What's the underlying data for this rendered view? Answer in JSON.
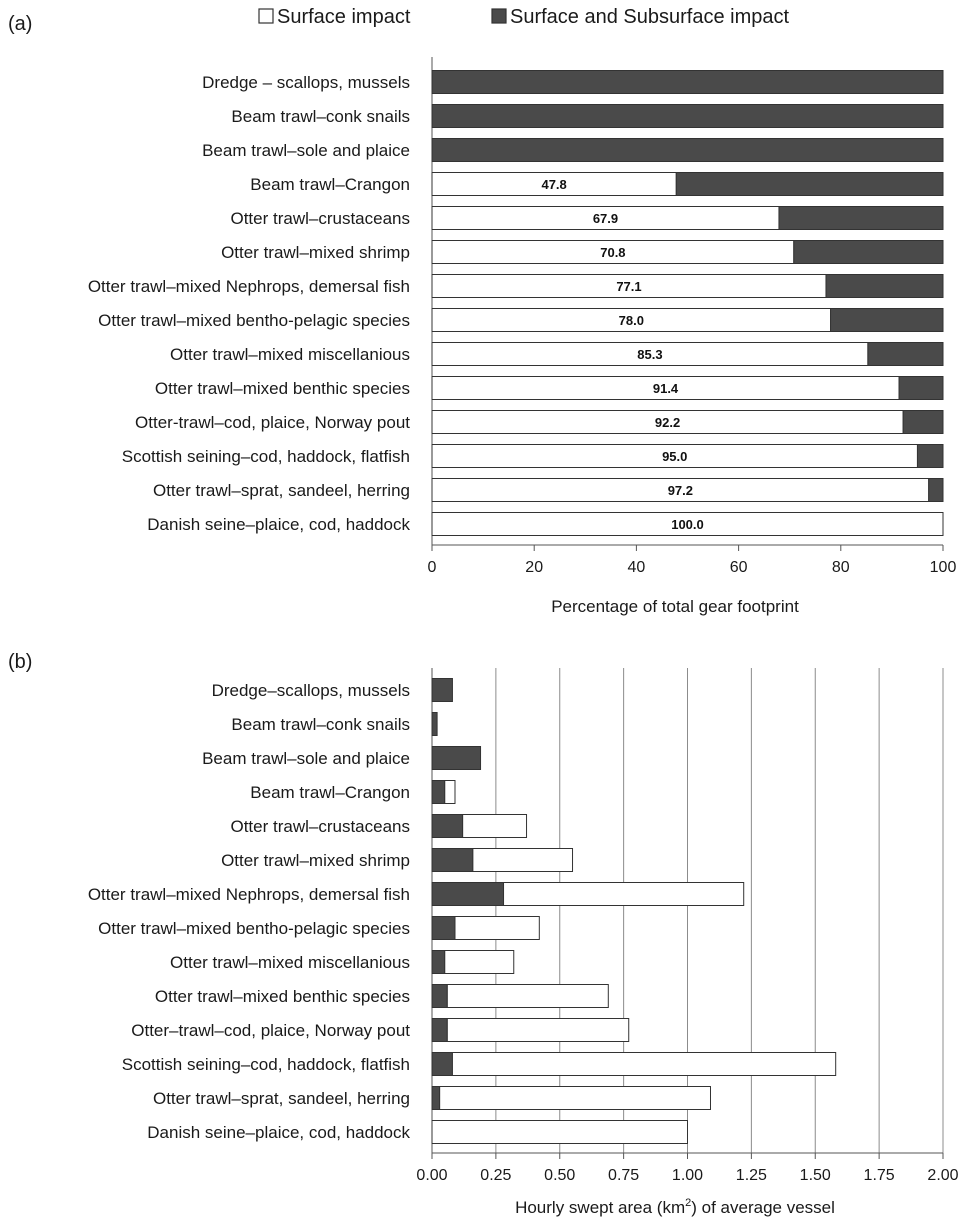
{
  "legend": {
    "surface": "Surface impact",
    "subsurface": "Surface and Subsurface impact"
  },
  "colors": {
    "surface": "#ffffff",
    "subsurface": "#4a4a4a",
    "outline": "#333333",
    "grid": "#8c8c8c"
  },
  "chart_data": [
    {
      "panel": "(a)",
      "type": "bar",
      "orientation": "horizontal",
      "stacked": true,
      "xlabel": "Percentage of total  gear footprint",
      "xlim": [
        0,
        100
      ],
      "xticks": [
        "0",
        "20",
        "40",
        "60",
        "80",
        "100"
      ],
      "xtick_values": [
        0,
        20,
        40,
        60,
        80,
        100
      ],
      "grid": false,
      "categories": [
        "Dredge – scallops, mussels",
        "Beam trawl–conk snails",
        "Beam trawl–sole and plaice",
        "Beam trawl–Crangon",
        "Otter trawl–crustaceans",
        "Otter trawl–mixed shrimp",
        "Otter trawl–mixed Nephrops, demersal fish",
        "Otter trawl–mixed bentho-pelagic species",
        "Otter trawl–mixed miscellanious",
        "Otter trawl–mixed benthic species",
        "Otter-trawl–cod, plaice, Norway pout",
        "Scottish seining–cod, haddock, flatfish",
        "Otter trawl–sprat, sandeel, herring",
        "Danish seine–plaice, cod, haddock"
      ],
      "series": [
        {
          "name": "Surface impact",
          "values": [
            0,
            0,
            0,
            47.8,
            67.9,
            70.8,
            77.1,
            78.0,
            85.3,
            91.4,
            92.2,
            95.0,
            97.2,
            100.0
          ]
        },
        {
          "name": "Surface and Subsurface impact",
          "values": [
            100,
            100,
            100,
            52.2,
            32.1,
            29.2,
            22.9,
            22.0,
            14.7,
            8.6,
            7.8,
            5.0,
            2.8,
            0
          ]
        }
      ],
      "data_labels": [
        "",
        "",
        "",
        "47.8",
        "67.9",
        "70.8",
        "77.1",
        "78.0",
        "85.3",
        "91.4",
        "92.2",
        "95.0",
        "97.2",
        "100.0"
      ]
    },
    {
      "panel": "(b)",
      "type": "bar",
      "orientation": "horizontal",
      "stacked": true,
      "xlabel_main": "Hourly swept area (km",
      "xlabel_sup": "2",
      "xlabel_end": ") of average vessel",
      "xlim": [
        0,
        2.0
      ],
      "xticks": [
        "0.00",
        "0.25",
        "0.50",
        "0.75",
        "1.00",
        "1.25",
        "1.50",
        "1.75",
        "2.00"
      ],
      "xtick_values": [
        0,
        0.25,
        0.5,
        0.75,
        1.0,
        1.25,
        1.5,
        1.75,
        2.0
      ],
      "grid": true,
      "categories": [
        "Dredge–scallops, mussels",
        "Beam trawl–conk snails",
        "Beam trawl–sole and plaice",
        "Beam trawl–Crangon",
        "Otter trawl–crustaceans",
        "Otter trawl–mixed shrimp",
        "Otter trawl–mixed Nephrops, demersal fish",
        "Otter trawl–mixed bentho-pelagic species",
        "Otter trawl–mixed miscellanious",
        "Otter trawl–mixed benthic species",
        "Otter–trawl–cod, plaice, Norway pout",
        "Scottish seining–cod, haddock, flatfish",
        "Otter trawl–sprat, sandeel, herring",
        "Danish seine–plaice, cod, haddock"
      ],
      "series": [
        {
          "name": "Surface and Subsurface impact",
          "values": [
            0.08,
            0.02,
            0.19,
            0.05,
            0.12,
            0.16,
            0.28,
            0.09,
            0.05,
            0.06,
            0.06,
            0.08,
            0.03,
            0.0
          ]
        },
        {
          "name": "Surface impact",
          "values": [
            0,
            0,
            0,
            0.04,
            0.25,
            0.39,
            0.94,
            0.33,
            0.27,
            0.63,
            0.71,
            1.5,
            1.06,
            1.0
          ]
        }
      ]
    }
  ]
}
